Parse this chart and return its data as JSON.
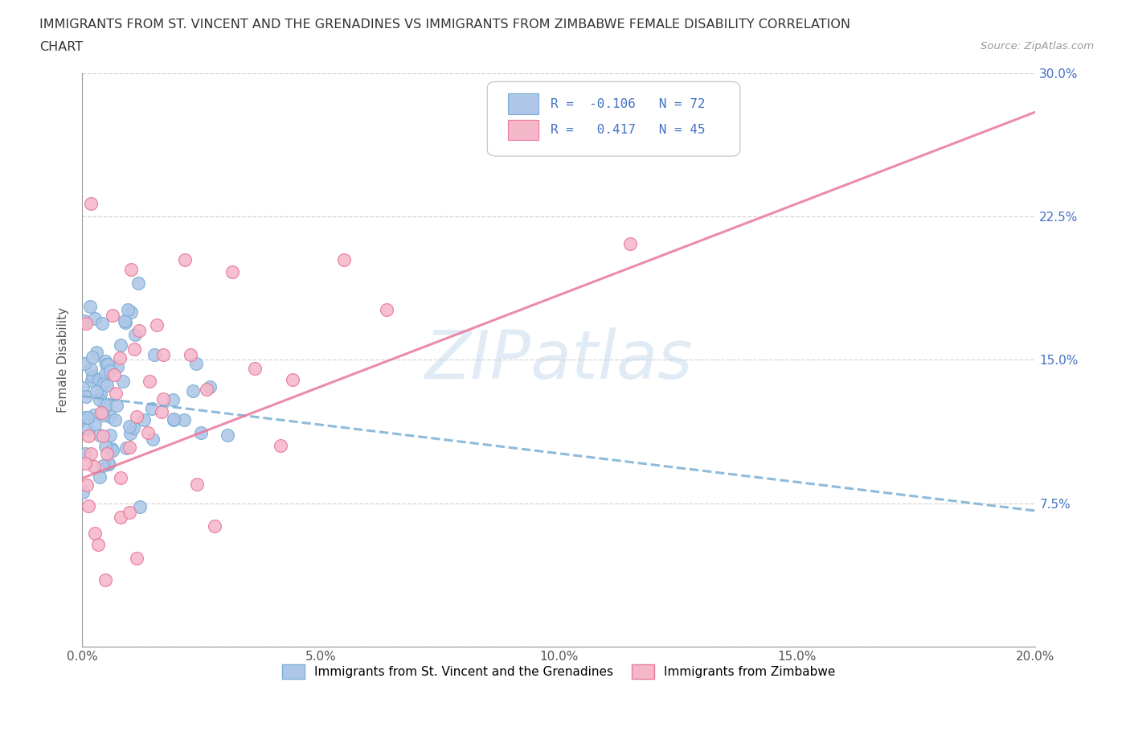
{
  "title_line1": "IMMIGRANTS FROM ST. VINCENT AND THE GRENADINES VS IMMIGRANTS FROM ZIMBABWE FEMALE DISABILITY CORRELATION",
  "title_line2": "CHART",
  "source": "Source: ZipAtlas.com",
  "ylabel": "Female Disability",
  "xlim": [
    0.0,
    0.2
  ],
  "ylim": [
    0.0,
    0.3
  ],
  "xticks": [
    0.0,
    0.05,
    0.1,
    0.15,
    0.2
  ],
  "xtick_labels": [
    "0.0%",
    "5.0%",
    "10.0%",
    "15.0%",
    "20.0%"
  ],
  "yticks": [
    0.0,
    0.075,
    0.15,
    0.225,
    0.3
  ],
  "ytick_labels": [
    "",
    "7.5%",
    "15.0%",
    "22.5%",
    "30.0%"
  ],
  "series1_color": "#aec6e8",
  "series1_edge": "#7bafd4",
  "series1_label": "Immigrants from St. Vincent and the Grenadines",
  "series1_R": -0.106,
  "series1_N": 72,
  "series1_line_color": "#7bafd4",
  "series2_color": "#f5b8ca",
  "series2_edge": "#e8789a",
  "series2_label": "Immigrants from Zimbabwe",
  "series2_R": 0.417,
  "series2_N": 45,
  "series2_line_color": "#e8789a",
  "legend_R_color": "#4472c4",
  "watermark_text": "ZIPatlas",
  "watermark_color": "#c5d8ee",
  "background_color": "#ffffff",
  "grid_color": "#cccccc"
}
